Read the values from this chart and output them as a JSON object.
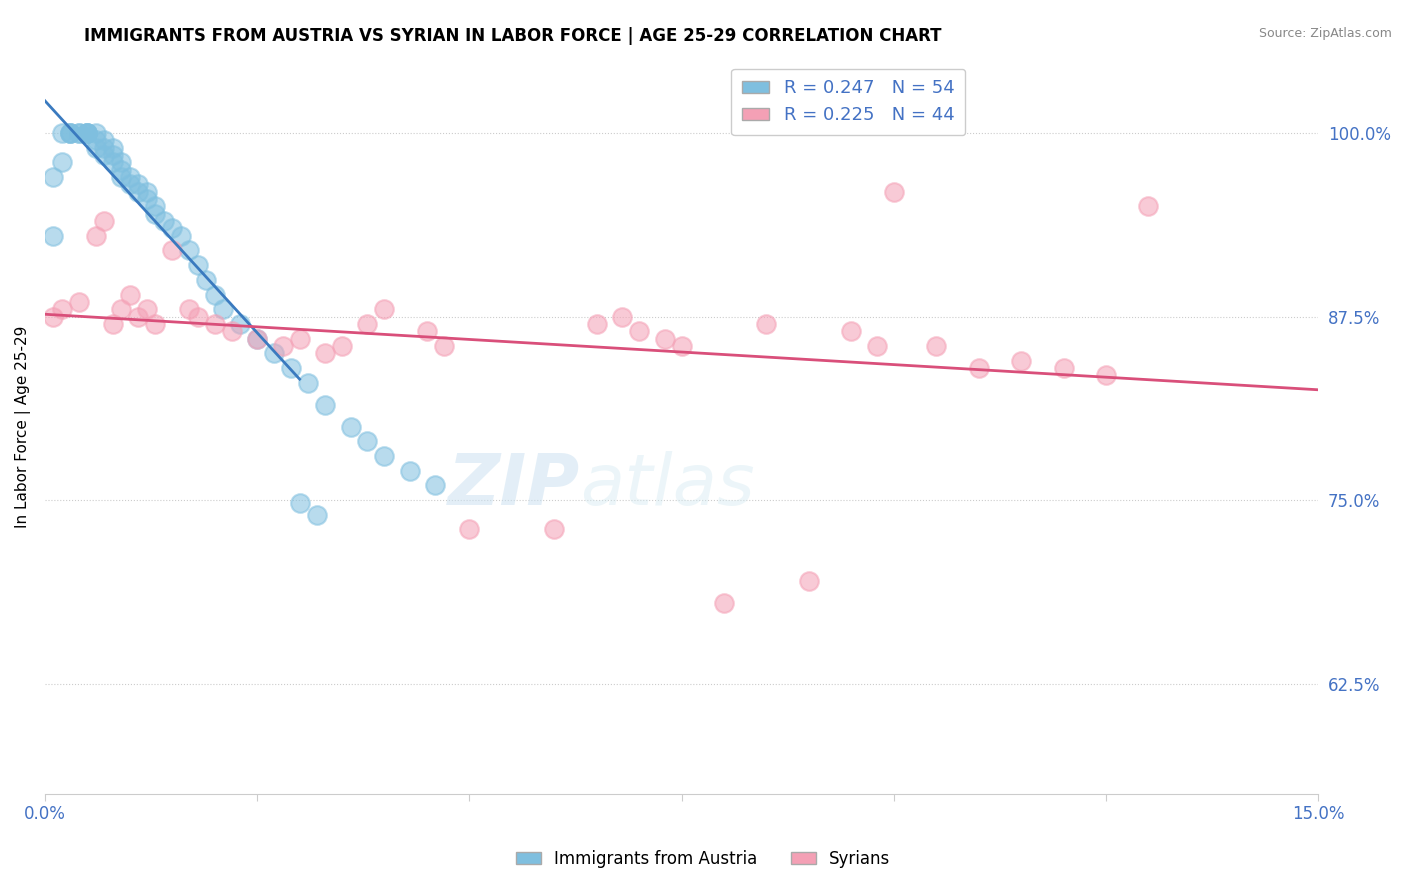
{
  "title": "IMMIGRANTS FROM AUSTRIA VS SYRIAN IN LABOR FORCE | AGE 25-29 CORRELATION CHART",
  "source": "Source: ZipAtlas.com",
  "ylabel": "In Labor Force | Age 25-29",
  "xlim": [
    0.0,
    0.15
  ],
  "ylim": [
    0.55,
    1.05
  ],
  "yticks": [
    0.625,
    0.75,
    0.875,
    1.0
  ],
  "yticklabels": [
    "62.5%",
    "75.0%",
    "87.5%",
    "100.0%"
  ],
  "austria_R": 0.247,
  "austria_N": 54,
  "syria_R": 0.225,
  "syria_N": 44,
  "austria_color": "#7fbfdf",
  "syria_color": "#f4a0b5",
  "austria_line_color": "#3a7abf",
  "syria_line_color": "#d94f7a",
  "legend_label_austria": "Immigrants from Austria",
  "legend_label_syria": "Syrians",
  "austria_x": [
    0.001,
    0.001,
    0.002,
    0.002,
    0.003,
    0.003,
    0.003,
    0.004,
    0.004,
    0.005,
    0.005,
    0.005,
    0.005,
    0.006,
    0.006,
    0.006,
    0.007,
    0.007,
    0.007,
    0.008,
    0.008,
    0.008,
    0.009,
    0.009,
    0.009,
    0.01,
    0.01,
    0.011,
    0.011,
    0.012,
    0.012,
    0.013,
    0.013,
    0.014,
    0.015,
    0.016,
    0.017,
    0.018,
    0.019,
    0.02,
    0.021,
    0.023,
    0.025,
    0.027,
    0.029,
    0.031,
    0.033,
    0.036,
    0.038,
    0.04,
    0.043,
    0.046,
    0.03,
    0.032
  ],
  "austria_y": [
    0.97,
    0.93,
    1.0,
    0.98,
    1.0,
    1.0,
    1.0,
    1.0,
    1.0,
    1.0,
    1.0,
    1.0,
    1.0,
    1.0,
    0.995,
    0.99,
    0.995,
    0.99,
    0.985,
    0.99,
    0.985,
    0.98,
    0.98,
    0.975,
    0.97,
    0.97,
    0.965,
    0.965,
    0.96,
    0.96,
    0.955,
    0.95,
    0.945,
    0.94,
    0.935,
    0.93,
    0.92,
    0.91,
    0.9,
    0.89,
    0.88,
    0.87,
    0.86,
    0.85,
    0.84,
    0.83,
    0.815,
    0.8,
    0.79,
    0.78,
    0.77,
    0.76,
    0.748,
    0.74
  ],
  "syria_x": [
    0.001,
    0.002,
    0.004,
    0.006,
    0.007,
    0.008,
    0.009,
    0.01,
    0.011,
    0.012,
    0.013,
    0.015,
    0.017,
    0.018,
    0.02,
    0.022,
    0.025,
    0.028,
    0.03,
    0.033,
    0.035,
    0.038,
    0.04,
    0.045,
    0.047,
    0.05,
    0.06,
    0.065,
    0.068,
    0.07,
    0.073,
    0.075,
    0.08,
    0.085,
    0.09,
    0.095,
    0.098,
    0.1,
    0.105,
    0.11,
    0.115,
    0.12,
    0.125,
    0.13
  ],
  "syria_y": [
    0.875,
    0.88,
    0.885,
    0.93,
    0.94,
    0.87,
    0.88,
    0.89,
    0.875,
    0.88,
    0.87,
    0.92,
    0.88,
    0.875,
    0.87,
    0.865,
    0.86,
    0.855,
    0.86,
    0.85,
    0.855,
    0.87,
    0.88,
    0.865,
    0.855,
    0.73,
    0.73,
    0.87,
    0.875,
    0.865,
    0.86,
    0.855,
    0.68,
    0.87,
    0.695,
    0.865,
    0.855,
    0.96,
    0.855,
    0.84,
    0.845,
    0.84,
    0.835,
    0.95
  ]
}
